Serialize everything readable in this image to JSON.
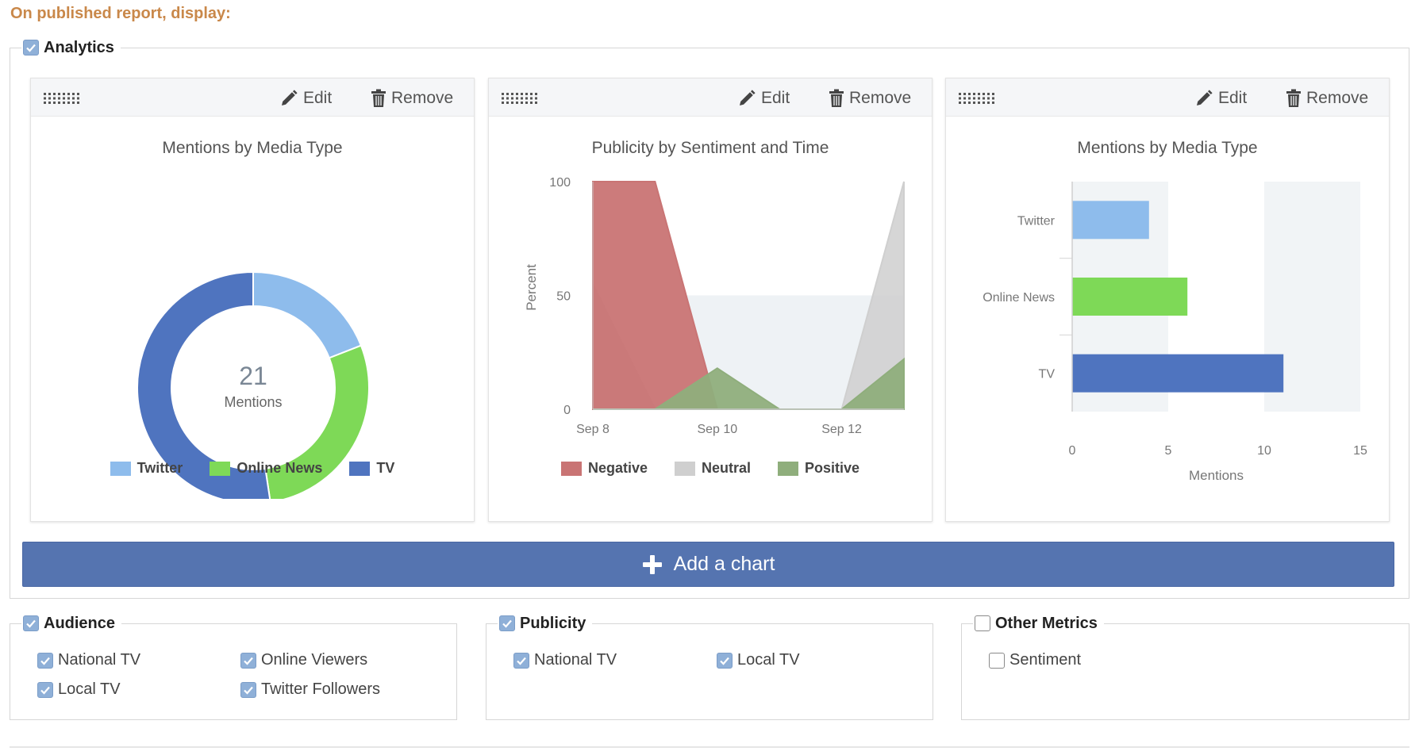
{
  "heading": "On published report, display:",
  "analytics": {
    "label": "Analytics",
    "checked": true,
    "edit_label": "Edit",
    "remove_label": "Remove",
    "add_chart_label": "Add a chart"
  },
  "chart_data": [
    {
      "type": "pie",
      "title": "Mentions by Media Type",
      "center_value": "21",
      "center_label": "Mentions",
      "categories": [
        "Twitter",
        "Online News",
        "TV"
      ],
      "values": [
        4,
        6,
        11
      ],
      "colors": [
        "#8ebcec",
        "#7ed957",
        "#4f74bf"
      ],
      "legend": "bottom"
    },
    {
      "type": "area",
      "title": "Publicity by Sentiment and Time",
      "ylabel": "Percent",
      "ylim": [
        0,
        100
      ],
      "yticks": [
        "0",
        "50",
        "100"
      ],
      "x": [
        "Sep 8",
        "Sep 9",
        "Sep 10",
        "Sep 11",
        "Sep 12",
        "Sep 13"
      ],
      "xticks": [
        "Sep 8",
        "Sep 10",
        "Sep 12"
      ],
      "series": [
        {
          "name": "Negative",
          "color": "#c97474",
          "values": [
            100,
            100,
            0,
            0,
            0,
            0
          ]
        },
        {
          "name": "Neutral",
          "color": "#cfcfcf",
          "values": [
            55,
            0,
            0,
            0,
            0,
            100
          ]
        },
        {
          "name": "Positive",
          "color": "#8fae7c",
          "values": [
            0,
            0,
            18,
            0,
            0,
            22
          ]
        }
      ],
      "legend": "bottom"
    },
    {
      "type": "bar",
      "orientation": "horizontal",
      "title": "Mentions by Media Type",
      "categories": [
        "Twitter",
        "Online News",
        "TV"
      ],
      "values": [
        4,
        6,
        11
      ],
      "colors": [
        "#8ebcec",
        "#7ed957",
        "#4f74bf"
      ],
      "xlabel": "Mentions",
      "xlim": [
        0,
        15
      ],
      "xticks": [
        "0",
        "5",
        "10",
        "15"
      ],
      "legend": "none"
    }
  ],
  "audience": {
    "label": "Audience",
    "checked": true,
    "options": [
      {
        "label": "National TV",
        "checked": true
      },
      {
        "label": "Online Viewers",
        "checked": true
      },
      {
        "label": "Local TV",
        "checked": true
      },
      {
        "label": "Twitter Followers",
        "checked": true
      }
    ]
  },
  "publicity": {
    "label": "Publicity",
    "checked": true,
    "options": [
      {
        "label": "National TV",
        "checked": true
      },
      {
        "label": "Local TV",
        "checked": true
      }
    ]
  },
  "other_metrics": {
    "label": "Other Metrics",
    "checked": false,
    "options": [
      {
        "label": "Sentiment",
        "checked": false
      }
    ]
  }
}
